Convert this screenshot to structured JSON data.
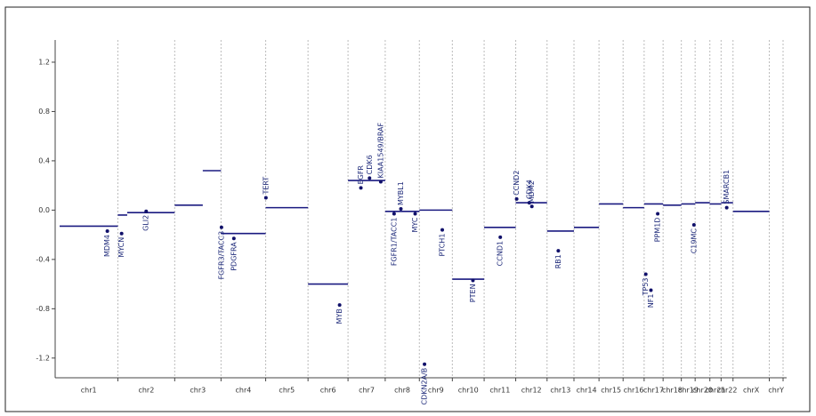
{
  "chart_data": {
    "type": "scatter",
    "chromosomes": [
      "chr1",
      "chr2",
      "chr3",
      "chr4",
      "chr5",
      "chr6",
      "chr7",
      "chr8",
      "chr9",
      "chr10",
      "chr11",
      "chr12",
      "chr13",
      "chr14",
      "chr15",
      "chr16",
      "chr17",
      "chr18",
      "chr19",
      "chr20",
      "chr21",
      "chr22",
      "chrX",
      "chrY"
    ],
    "lengths": [
      249,
      243,
      198,
      191,
      181,
      171,
      159,
      146,
      141,
      136,
      135,
      134,
      115,
      107,
      103,
      90,
      81,
      78,
      59,
      63,
      48,
      51,
      155,
      59
    ],
    "ylim": [
      -1.36,
      1.38
    ],
    "yticks": [
      -1.2,
      -0.8,
      -0.4,
      {
        "value": 0,
        "label": "0.0"
      },
      0.4,
      0.8,
      1.2
    ],
    "segment_color": "#1a1a80",
    "segments": [
      {
        "chrom": 0,
        "start": 0,
        "end": 249,
        "value": -0.13
      },
      {
        "chrom": 1,
        "start": 0,
        "end": 40,
        "value": -0.04
      },
      {
        "chrom": 1,
        "start": 40,
        "end": 243,
        "value": -0.02
      },
      {
        "chrom": 2,
        "start": 0,
        "end": 120,
        "value": 0.04
      },
      {
        "chrom": 2,
        "start": 120,
        "end": 198,
        "value": 0.32
      },
      {
        "chrom": 3,
        "start": 0,
        "end": 191,
        "value": -0.19
      },
      {
        "chrom": 4,
        "start": 0,
        "end": 181,
        "value": 0.02
      },
      {
        "chrom": 5,
        "start": 0,
        "end": 171,
        "value": -0.6
      },
      {
        "chrom": 6,
        "start": 0,
        "end": 159,
        "value": 0.24
      },
      {
        "chrom": 7,
        "start": 0,
        "end": 146,
        "value": -0.01
      },
      {
        "chrom": 8,
        "start": 0,
        "end": 141,
        "value": 0
      },
      {
        "chrom": 9,
        "start": 0,
        "end": 136,
        "value": -0.56
      },
      {
        "chrom": 10,
        "start": 0,
        "end": 135,
        "value": -0.14
      },
      {
        "chrom": 11,
        "start": 0,
        "end": 134,
        "value": 0.06
      },
      {
        "chrom": 12,
        "start": 0,
        "end": 115,
        "value": -0.17
      },
      {
        "chrom": 13,
        "start": 0,
        "end": 107,
        "value": -0.14
      },
      {
        "chrom": 14,
        "start": 0,
        "end": 103,
        "value": 0.05
      },
      {
        "chrom": 15,
        "start": 0,
        "end": 90,
        "value": 0.02
      },
      {
        "chrom": 16,
        "start": 0,
        "end": 81,
        "value": 0.05
      },
      {
        "chrom": 17,
        "start": 0,
        "end": 78,
        "value": 0.04
      },
      {
        "chrom": 18,
        "start": 0,
        "end": 59,
        "value": 0.05
      },
      {
        "chrom": 19,
        "start": 0,
        "end": 63,
        "value": 0.06
      },
      {
        "chrom": 20,
        "start": 0,
        "end": 48,
        "value": 0.05
      },
      {
        "chrom": 21,
        "start": 0,
        "end": 51,
        "value": 0.06
      },
      {
        "chrom": 22,
        "start": 0,
        "end": 155,
        "value": -0.01
      }
    ],
    "gene_color": "#10106a",
    "genes": [
      {
        "name": "MDM4",
        "chrom": 0,
        "pos": 204,
        "value": -0.17
      },
      {
        "name": "MYCN",
        "chrom": 1,
        "pos": 16,
        "value": -0.19
      },
      {
        "name": "GLI2",
        "chrom": 1,
        "pos": 121,
        "value": -0.01
      },
      {
        "name": "FGFR3/TACC3",
        "chrom": 3,
        "pos": 2,
        "value": -0.14
      },
      {
        "name": "PDGFRA",
        "chrom": 3,
        "pos": 55,
        "value": -0.23
      },
      {
        "name": "TERT",
        "chrom": 4,
        "pos": 1,
        "value": 0.1
      },
      {
        "name": "MYB",
        "chrom": 5,
        "pos": 135,
        "value": -0.77
      },
      {
        "name": "EGFR",
        "chrom": 6,
        "pos": 55,
        "value": 0.18
      },
      {
        "name": "CDK6",
        "chrom": 6,
        "pos": 92,
        "value": 0.26
      },
      {
        "name": "KIAA1549/BRAF",
        "chrom": 6,
        "pos": 140,
        "value": 0.23
      },
      {
        "name": "FGFR1/TACC1",
        "chrom": 7,
        "pos": 38,
        "value": -0.03
      },
      {
        "name": "MYBL1",
        "chrom": 7,
        "pos": 67,
        "value": 0.01
      },
      {
        "name": "MYC",
        "chrom": 7,
        "pos": 128,
        "value": -0.03
      },
      {
        "name": "CDKN2A/B",
        "chrom": 8,
        "pos": 22,
        "value": -1.25
      },
      {
        "name": "PTCH1",
        "chrom": 8,
        "pos": 98,
        "value": -0.16
      },
      {
        "name": "PTEN",
        "chrom": 9,
        "pos": 88,
        "value": -0.57
      },
      {
        "name": "CCND1",
        "chrom": 10,
        "pos": 69,
        "value": -0.22
      },
      {
        "name": "CCND2",
        "chrom": 11,
        "pos": 4,
        "value": 0.09
      },
      {
        "name": "CDK4",
        "chrom": 11,
        "pos": 58,
        "value": 0.06
      },
      {
        "name": "MDM2",
        "chrom": 11,
        "pos": 69,
        "value": 0.03
      },
      {
        "name": "RB1",
        "chrom": 12,
        "pos": 48,
        "value": -0.33
      },
      {
        "name": "TP53",
        "chrom": 16,
        "pos": 7,
        "value": -0.52
      },
      {
        "name": "NF1",
        "chrom": 16,
        "pos": 29,
        "value": -0.65
      },
      {
        "name": "PPM1D",
        "chrom": 16,
        "pos": 58,
        "value": -0.03
      },
      {
        "name": "C19MC",
        "chrom": 18,
        "pos": 54,
        "value": -0.12
      },
      {
        "name": "SMARCB1",
        "chrom": 21,
        "pos": 24,
        "value": 0.02
      }
    ]
  }
}
